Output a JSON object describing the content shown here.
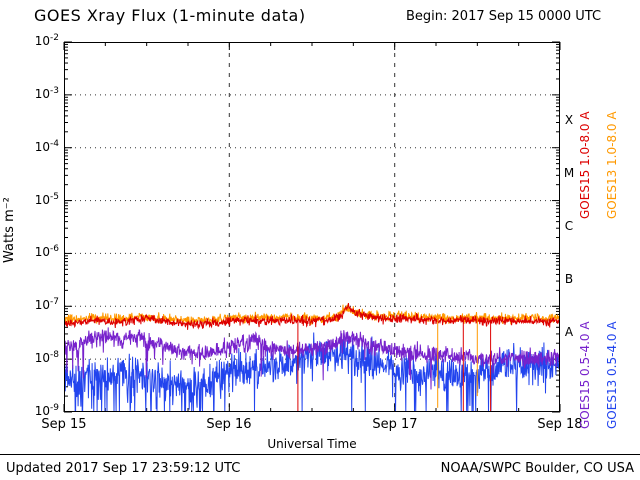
{
  "header": {
    "title": "GOES Xray Flux (1-minute data)",
    "begin_label": "Begin: 2017 Sep 15 0000 UTC"
  },
  "footer": {
    "updated": "Updated 2017 Sep 17 23:59:12 UTC",
    "credit": "NOAA/SWPC Boulder, CO USA"
  },
  "chart_data": {
    "type": "line",
    "title": "GOES Xray Flux (1-minute data)",
    "xlabel": "Universal Time",
    "ylabel": "Watts m⁻²",
    "x_tick_labels": [
      "Sep 15",
      "Sep 16",
      "Sep 17",
      "Sep 18"
    ],
    "x_range_days": [
      0,
      3
    ],
    "y_log_range": [
      -9,
      -2
    ],
    "y_tick_exponents": [
      -2,
      -3,
      -4,
      -5,
      -6,
      -7,
      -8,
      -9
    ],
    "grid": {
      "h_decades": [
        -3,
        -4,
        -5,
        -6,
        -7,
        -8
      ],
      "v_days": [
        1,
        2
      ]
    },
    "flare_classes": [
      {
        "label": "X",
        "log_center": -3.5
      },
      {
        "label": "M",
        "log_center": -4.5
      },
      {
        "label": "C",
        "log_center": -5.5
      },
      {
        "label": "B",
        "log_center": -6.5
      },
      {
        "label": "A",
        "log_center": -7.5
      }
    ],
    "right_labels": [
      {
        "label": "GOES15 1.0-8.0 A",
        "color": "#dd0000",
        "column": 0,
        "row": 0
      },
      {
        "label": "GOES13 1.0-8.0 A",
        "color": "#ff9900",
        "column": 1,
        "row": 0
      },
      {
        "label": "GOES15 0.5-4.0 A",
        "color": "#7722cc",
        "column": 0,
        "row": 1
      },
      {
        "label": "GOES13 0.5-4.0 A",
        "color": "#2244ee",
        "column": 1,
        "row": 1
      }
    ],
    "series": [
      {
        "id": "goes13-short",
        "name": "GOES13 0.5-4.0 A",
        "color": "#2244ee",
        "seed": 11,
        "noise": 0.42,
        "spike_mag": 1.3,
        "spike_prob": 0.02,
        "spike_zones": [
          [
            0,
            1,
            0.09
          ],
          [
            1,
            2,
            0.02
          ],
          [
            2,
            2.55,
            0.07
          ],
          [
            2.55,
            3,
            0.03
          ]
        ],
        "points": [
          [
            0,
            5e-09
          ],
          [
            0.08,
            3.5e-09
          ],
          [
            0.15,
            5.5e-09
          ],
          [
            0.25,
            4.5e-09
          ],
          [
            0.35,
            6e-09
          ],
          [
            0.45,
            5e-09
          ],
          [
            0.55,
            4e-09
          ],
          [
            0.65,
            3.5e-09
          ],
          [
            0.75,
            3e-09
          ],
          [
            0.85,
            3.5e-09
          ],
          [
            0.95,
            5e-09
          ],
          [
            1.05,
            6.5e-09
          ],
          [
            1.15,
            6e-09
          ],
          [
            1.25,
            7e-09
          ],
          [
            1.35,
            9e-09
          ],
          [
            1.45,
            1.2e-08
          ],
          [
            1.55,
            1.4e-08
          ],
          [
            1.65,
            1.3e-08
          ],
          [
            1.75,
            1.1e-08
          ],
          [
            1.85,
            8.5e-09
          ],
          [
            1.95,
            7e-09
          ],
          [
            2.05,
            6e-09
          ],
          [
            2.15,
            5e-09
          ],
          [
            2.25,
            6e-09
          ],
          [
            2.35,
            4e-09
          ],
          [
            2.45,
            4.5e-09
          ],
          [
            2.55,
            6e-09
          ],
          [
            2.65,
            7.5e-09
          ],
          [
            2.75,
            8e-09
          ],
          [
            2.85,
            7.5e-09
          ],
          [
            3,
            8.5e-09
          ]
        ]
      },
      {
        "id": "goes15-short",
        "name": "GOES15 0.5-4.0 A",
        "color": "#7722cc",
        "seed": 22,
        "noise": 0.2,
        "spike_mag": 0.7,
        "spike_prob": 0.008,
        "spike_zones": [
          [
            0.05,
            0.75,
            0.03
          ],
          [
            1.0,
            1.35,
            0.025
          ]
        ],
        "points": [
          [
            0,
            2.2e-08
          ],
          [
            0.08,
            1.6e-08
          ],
          [
            0.15,
            2.4e-08
          ],
          [
            0.25,
            2.8e-08
          ],
          [
            0.35,
            2.2e-08
          ],
          [
            0.45,
            2.6e-08
          ],
          [
            0.55,
            2e-08
          ],
          [
            0.65,
            1.6e-08
          ],
          [
            0.75,
            1.3e-08
          ],
          [
            0.85,
            1.2e-08
          ],
          [
            0.95,
            1.5e-08
          ],
          [
            1.05,
            2e-08
          ],
          [
            1.15,
            2.3e-08
          ],
          [
            1.25,
            1.7e-08
          ],
          [
            1.35,
            1.4e-08
          ],
          [
            1.5,
            1.6e-08
          ],
          [
            1.62,
            1.8e-08
          ],
          [
            1.71,
            2.7e-08
          ],
          [
            1.8,
            2.1e-08
          ],
          [
            1.9,
            1.7e-08
          ],
          [
            2.0,
            1.5e-08
          ],
          [
            2.1,
            1.3e-08
          ],
          [
            2.25,
            1.2e-08
          ],
          [
            2.4,
            1.1e-08
          ],
          [
            2.55,
            1e-08
          ],
          [
            2.7,
            1.1e-08
          ],
          [
            2.85,
            1e-08
          ],
          [
            3,
            1.1e-08
          ]
        ]
      },
      {
        "id": "goes13-long",
        "name": "GOES13 1.0-8.0 A",
        "color": "#ff9900",
        "seed": 33,
        "noise": 0.11,
        "spike_mag": 0,
        "spike_prob": 0,
        "spike_zones": [],
        "points": [
          [
            0,
            5.4e-08
          ],
          [
            0.15,
            6e-08
          ],
          [
            0.3,
            5.6e-08
          ],
          [
            0.45,
            6.4e-08
          ],
          [
            0.6,
            5.8e-08
          ],
          [
            0.75,
            5.4e-08
          ],
          [
            0.9,
            5.6e-08
          ],
          [
            1.05,
            6.2e-08
          ],
          [
            1.2,
            6e-08
          ],
          [
            1.35,
            6.2e-08
          ],
          [
            1.5,
            5.8e-08
          ],
          [
            1.65,
            6.6e-08
          ],
          [
            1.71,
            9e-08
          ],
          [
            1.78,
            7.2e-08
          ],
          [
            1.9,
            6.4e-08
          ],
          [
            2.05,
            6.6e-08
          ],
          [
            2.2,
            6.2e-08
          ],
          [
            2.35,
            5.8e-08
          ],
          [
            2.5,
            6.2e-08
          ],
          [
            2.65,
            5.8e-08
          ],
          [
            2.8,
            6e-08
          ],
          [
            3,
            5.8e-08
          ]
        ]
      },
      {
        "id": "goes15-long",
        "name": "GOES15 1.0-8.0 A",
        "color": "#dd0000",
        "seed": 44,
        "noise": 0.1,
        "spike_mag": 0,
        "spike_prob": 0,
        "spike_zones": [],
        "points": [
          [
            0,
            4.6e-08
          ],
          [
            0.1,
            5e-08
          ],
          [
            0.2,
            5.4e-08
          ],
          [
            0.3,
            5e-08
          ],
          [
            0.4,
            5.4e-08
          ],
          [
            0.5,
            6e-08
          ],
          [
            0.6,
            5.2e-08
          ],
          [
            0.7,
            4.8e-08
          ],
          [
            0.8,
            4.6e-08
          ],
          [
            0.9,
            4.8e-08
          ],
          [
            1.0,
            5.2e-08
          ],
          [
            1.1,
            5.6e-08
          ],
          [
            1.2,
            5.2e-08
          ],
          [
            1.3,
            5.4e-08
          ],
          [
            1.4,
            5.6e-08
          ],
          [
            1.5,
            5.2e-08
          ],
          [
            1.6,
            5.6e-08
          ],
          [
            1.68,
            6.5e-08
          ],
          [
            1.71,
            1.05e-07
          ],
          [
            1.76,
            7.5e-08
          ],
          [
            1.85,
            6.2e-08
          ],
          [
            1.95,
            5.6e-08
          ],
          [
            2.05,
            6e-08
          ],
          [
            2.15,
            5.6e-08
          ],
          [
            2.3,
            5.2e-08
          ],
          [
            2.45,
            5.6e-08
          ],
          [
            2.6,
            5.2e-08
          ],
          [
            2.75,
            5.4e-08
          ],
          [
            2.9,
            5e-08
          ],
          [
            3,
            5.2e-08
          ]
        ]
      }
    ],
    "dropouts": [
      {
        "series": "goes15-long",
        "t": 1.415,
        "to": 1e-09
      },
      {
        "series": "goes15-long",
        "t": 2.415,
        "to": 1e-09
      },
      {
        "series": "goes15-long",
        "t": 2.58,
        "to": 1e-09
      },
      {
        "series": "goes13-long",
        "t": 2.26,
        "to": 1.2e-09
      },
      {
        "series": "goes13-long",
        "t": 2.5,
        "to": 2e-09
      }
    ]
  }
}
